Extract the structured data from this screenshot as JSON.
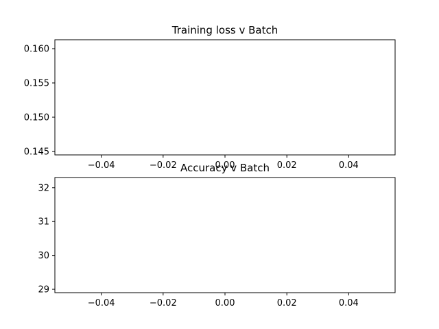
{
  "chart_data": [
    {
      "type": "line",
      "title": "Training loss v Batch",
      "xlabel": "",
      "ylabel": "",
      "series": [
        {
          "values": []
        }
      ],
      "xlim": [
        -0.055,
        0.055
      ],
      "ylim": [
        0.1445,
        0.1613
      ],
      "xticks": [
        -0.04,
        -0.02,
        0.0,
        0.02,
        0.04
      ],
      "xtick_labels": [
        "−0.04",
        "−0.02",
        "0.00",
        "0.02",
        "0.04"
      ],
      "yticks": [
        0.145,
        0.15,
        0.155,
        0.16
      ],
      "ytick_labels": [
        "0.145",
        "0.150",
        "0.155",
        "0.160"
      ],
      "grid": false
    },
    {
      "type": "line",
      "title": "Accuracy v Batch",
      "xlabel": "",
      "ylabel": "",
      "series": [
        {
          "values": []
        }
      ],
      "xlim": [
        -0.055,
        0.055
      ],
      "ylim": [
        28.9,
        32.3
      ],
      "xticks": [
        -0.04,
        -0.02,
        0.0,
        0.02,
        0.04
      ],
      "xtick_labels": [
        "−0.04",
        "−0.02",
        "0.00",
        "0.02",
        "0.04"
      ],
      "yticks": [
        29,
        30,
        31,
        32
      ],
      "ytick_labels": [
        "29",
        "30",
        "31",
        "32"
      ],
      "grid": false
    }
  ]
}
